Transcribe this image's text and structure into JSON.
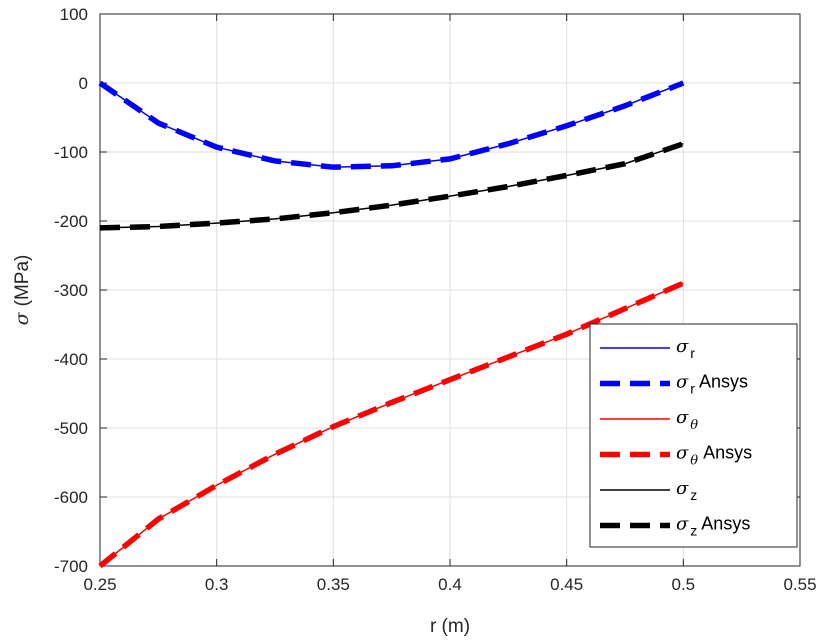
{
  "chart_data": {
    "type": "line",
    "xlabel": "r (m)",
    "ylabel_symbol": "σ",
    "ylabel_unit": "(MPa)",
    "xlim": [
      0.25,
      0.55
    ],
    "ylim": [
      -700,
      100
    ],
    "xticks": [
      "0.25",
      "0.3",
      "0.35",
      "0.4",
      "0.45",
      "0.5",
      "0.55"
    ],
    "yticks": [
      "100",
      "0",
      "-100",
      "-200",
      "-300",
      "-400",
      "-500",
      "-600",
      "-700"
    ],
    "grid": true,
    "legend_position": "bottom-right",
    "x": [
      0.25,
      0.275,
      0.3,
      0.325,
      0.35,
      0.375,
      0.4,
      0.425,
      0.45,
      0.475,
      0.5
    ],
    "series": [
      {
        "symbol": "σ",
        "sub": "r",
        "suffix": "",
        "color": "#0000ff",
        "style": "solid",
        "values": [
          0,
          -58,
          -93,
          -113,
          -122,
          -120,
          -110,
          -88,
          -62,
          -33,
          0
        ]
      },
      {
        "symbol": "σ",
        "sub": "r",
        "suffix": " Ansys",
        "color": "#0000ff",
        "style": "dashed",
        "values": [
          0,
          -58,
          -93,
          -113,
          -122,
          -120,
          -110,
          -88,
          -62,
          -33,
          0
        ]
      },
      {
        "symbol": "σ",
        "sub": "θ",
        "suffix": "",
        "color": "#ff0000",
        "style": "solid",
        "values": [
          -700,
          -632,
          -583,
          -538,
          -498,
          -463,
          -430,
          -397,
          -364,
          -327,
          -290
        ]
      },
      {
        "symbol": "σ",
        "sub": "θ",
        "suffix": " Ansys",
        "color": "#ff0000",
        "style": "dashed",
        "values": [
          -700,
          -632,
          -583,
          -538,
          -498,
          -463,
          -430,
          -397,
          -364,
          -327,
          -290
        ]
      },
      {
        "symbol": "σ",
        "sub": "z",
        "suffix": "",
        "color": "#000000",
        "style": "solid",
        "values": [
          -210,
          -208,
          -203,
          -197,
          -188,
          -177,
          -164,
          -150,
          -134,
          -117,
          -88
        ]
      },
      {
        "symbol": "σ",
        "sub": "z",
        "suffix": " Ansys",
        "color": "#000000",
        "style": "dashed",
        "values": [
          -210,
          -208,
          -203,
          -197,
          -188,
          -177,
          -164,
          -150,
          -134,
          -117,
          -88
        ]
      }
    ]
  }
}
